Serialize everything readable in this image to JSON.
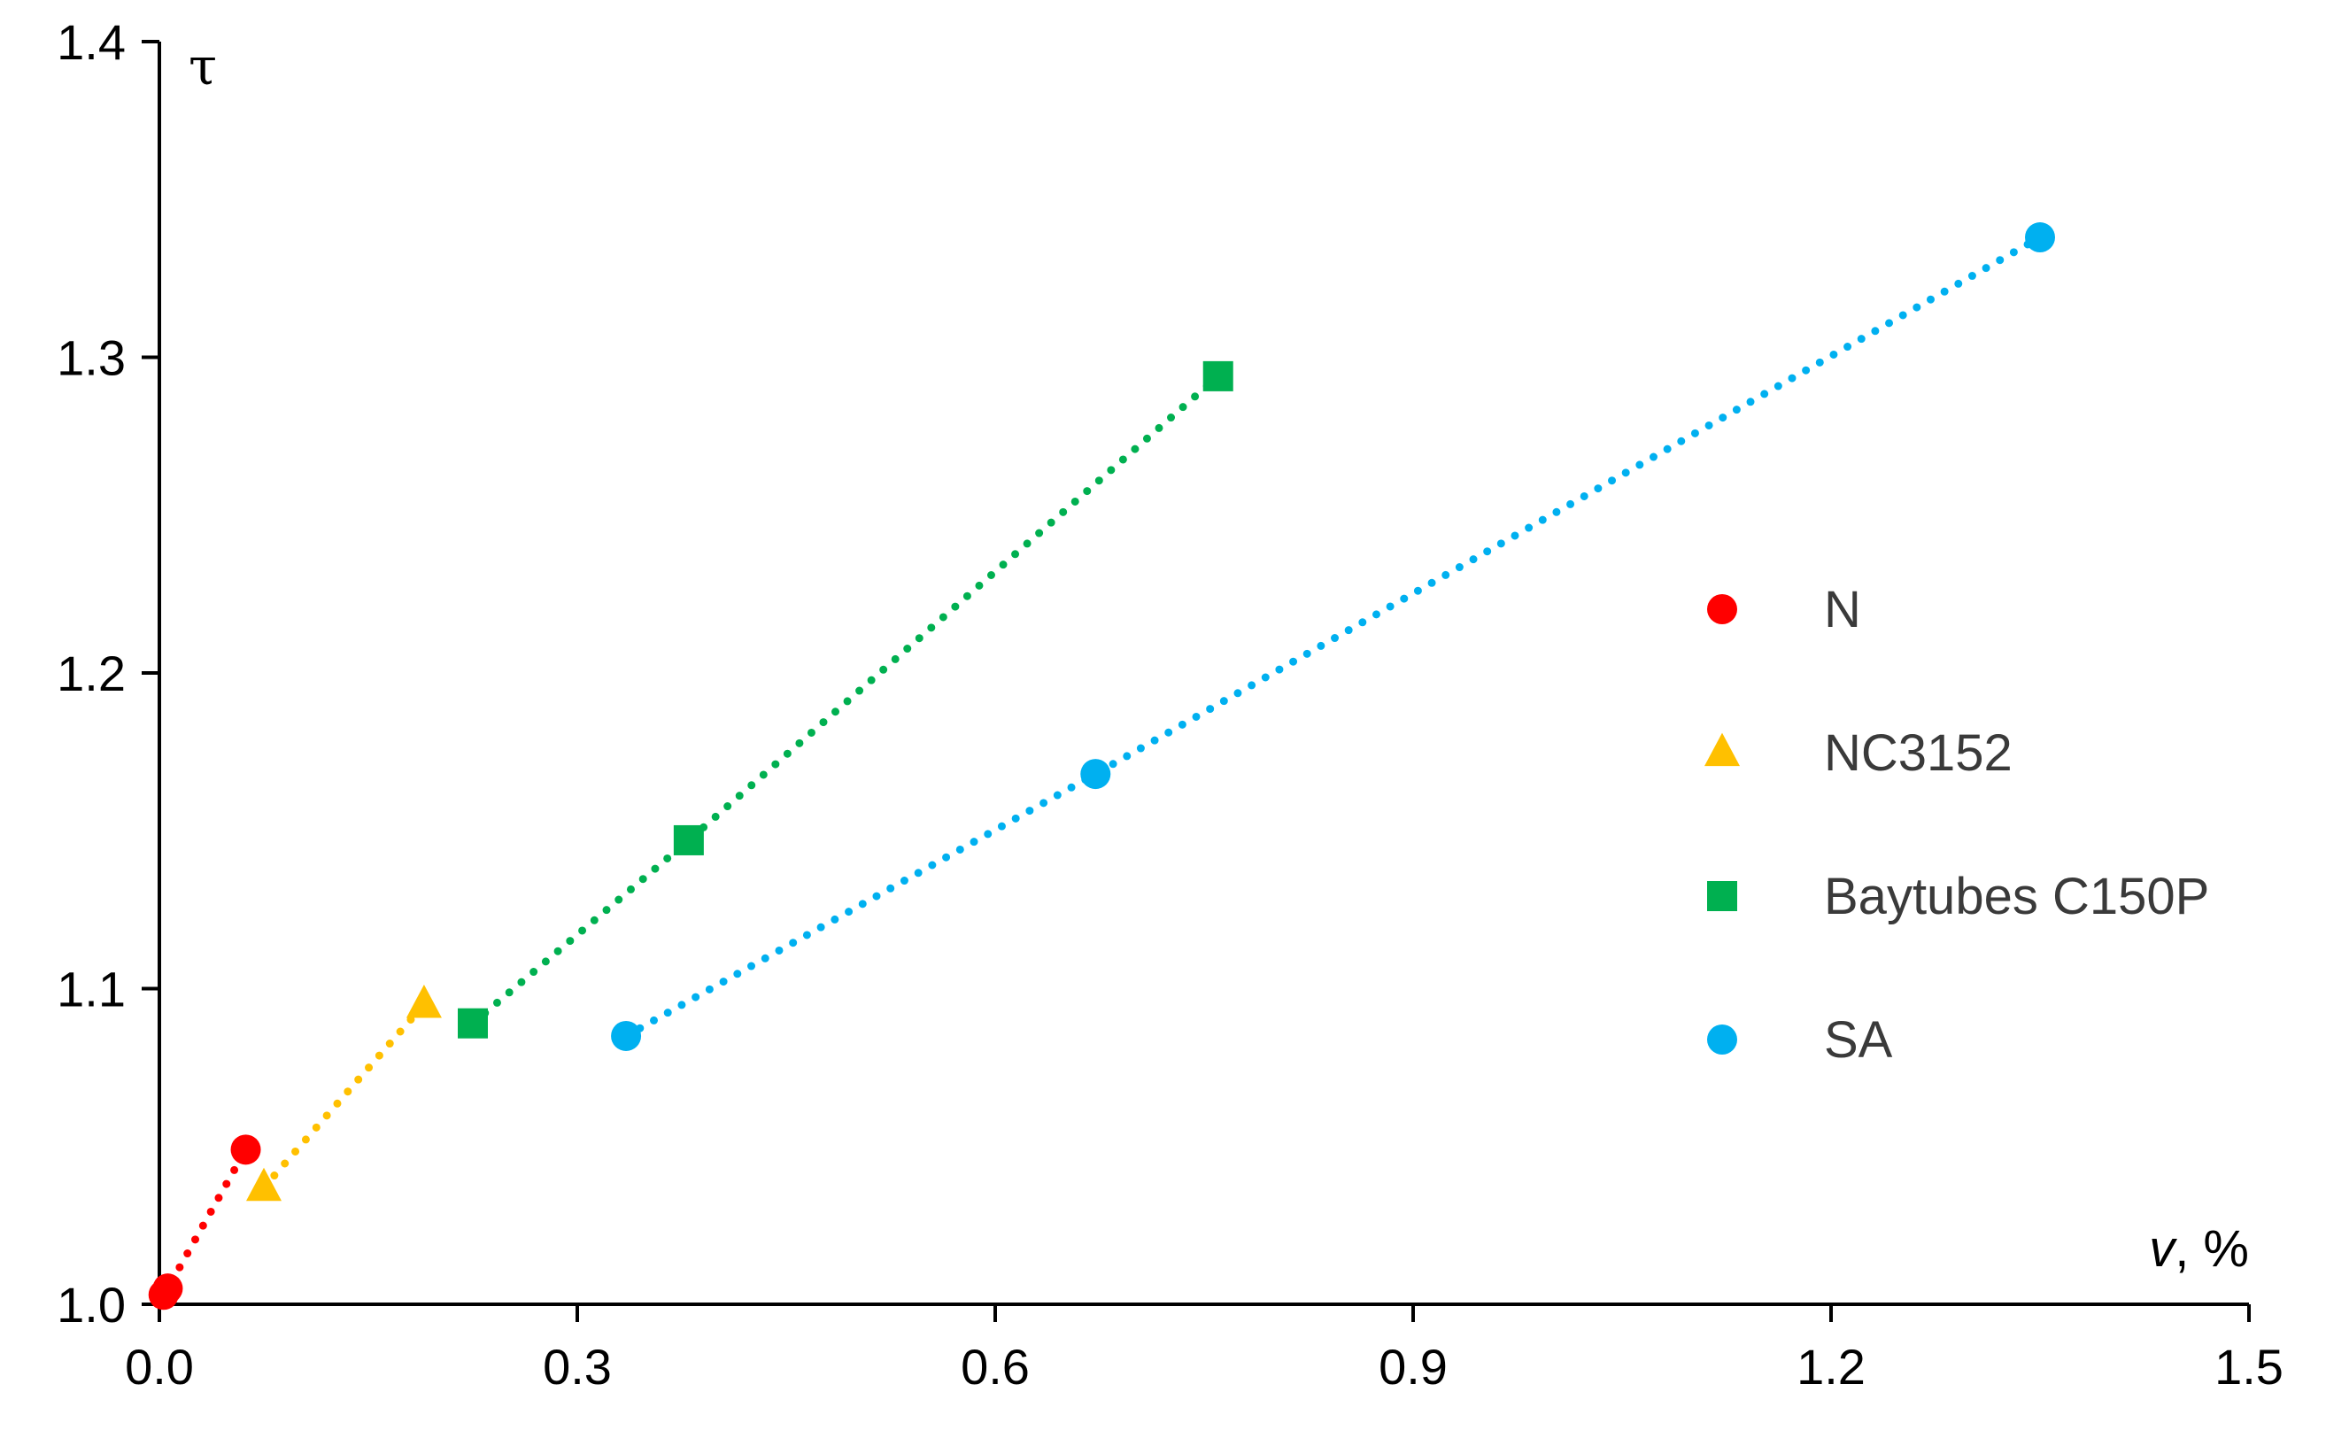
{
  "chart_data": {
    "type": "scatter",
    "title": "",
    "xlabel": "v, %",
    "xlabel_parts": {
      "var": "v",
      "unit": ", %"
    },
    "ylabel": "τ",
    "xlim": [
      0,
      1.5
    ],
    "ylim": [
      1.0,
      1.4
    ],
    "x_ticks": [
      0.0,
      0.3,
      0.6,
      0.9,
      1.2,
      1.5
    ],
    "x_tick_labels": [
      "0.0",
      "0.3",
      "0.6",
      "0.9",
      "1.2",
      "1.5"
    ],
    "y_ticks": [
      1.0,
      1.1,
      1.2,
      1.3,
      1.4
    ],
    "y_tick_labels": [
      "1.0",
      "1.1",
      "1.2",
      "1.3",
      "1.4"
    ],
    "grid": false,
    "legend_position": "right",
    "series": [
      {
        "name": "N",
        "marker": "circle",
        "color": "#ff0000",
        "line": "dotted",
        "points": [
          [
            0.003,
            1.003
          ],
          [
            0.006,
            1.005
          ],
          [
            0.062,
            1.049
          ]
        ]
      },
      {
        "name": "NC3152",
        "marker": "triangle",
        "color": "#ffc000",
        "line": "dotted",
        "points": [
          [
            0.075,
            1.037
          ],
          [
            0.19,
            1.095
          ]
        ]
      },
      {
        "name": "Baytubes C150P",
        "marker": "square",
        "color": "#00b050",
        "line": "dotted",
        "points": [
          [
            0.225,
            1.089
          ],
          [
            0.38,
            1.147
          ],
          [
            0.76,
            1.294
          ]
        ]
      },
      {
        "name": "SA",
        "marker": "circle",
        "color": "#00b0f0",
        "line": "dotted",
        "points": [
          [
            0.335,
            1.085
          ],
          [
            0.672,
            1.168
          ],
          [
            1.35,
            1.338
          ]
        ]
      }
    ]
  }
}
